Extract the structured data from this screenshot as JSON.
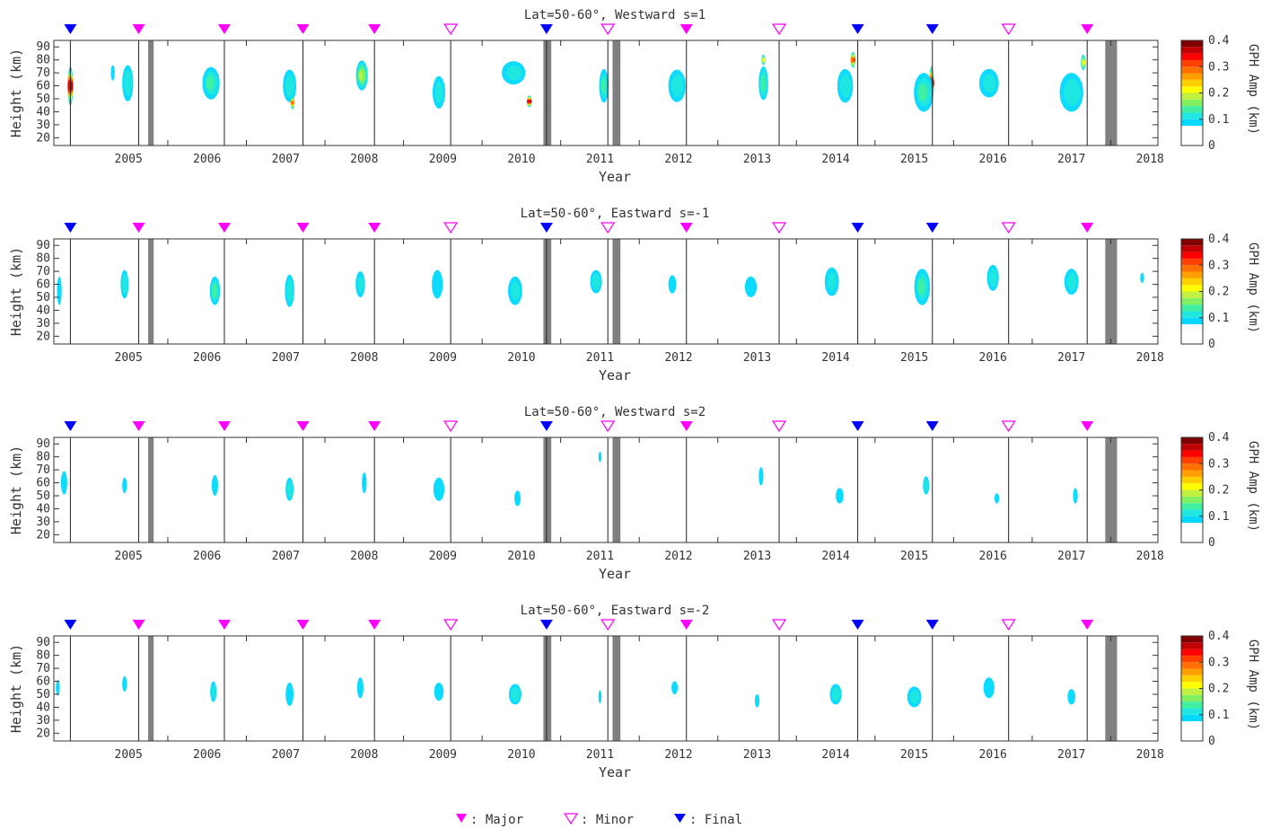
{
  "chart_data": [
    {
      "type": "heatmap",
      "title": "Lat=50-60°, Westward s=1",
      "xlabel": "Year",
      "ylabel": "Height (km)",
      "xlim": [
        2004.55,
        2018.6
      ],
      "ylim": [
        14,
        95
      ],
      "x_ticks": [
        "2005",
        "2006",
        "2007",
        "2008",
        "2009",
        "2010",
        "2011",
        "2012",
        "2013",
        "2014",
        "2015",
        "2016",
        "2017",
        "2018"
      ],
      "y_ticks": [
        "20",
        "30",
        "40",
        "50",
        "60",
        "70",
        "80",
        "90"
      ],
      "colorbar": {
        "label": "GPH Amp (km)",
        "min": 0,
        "max": 0.4,
        "ticks": [
          "0",
          "0.1",
          "0.2",
          "0.3",
          "0.4"
        ]
      },
      "blobs": [
        {
          "x": 2004.76,
          "y": 60,
          "w": 0.07,
          "h": 30,
          "v": 0.38
        },
        {
          "x": 2005.49,
          "y": 62,
          "w": 0.14,
          "h": 28,
          "v": 0.14
        },
        {
          "x": 2005.3,
          "y": 70,
          "w": 0.05,
          "h": 12,
          "v": 0.11
        },
        {
          "x": 2006.55,
          "y": 62,
          "w": 0.22,
          "h": 25,
          "v": 0.15
        },
        {
          "x": 2007.55,
          "y": 60,
          "w": 0.17,
          "h": 25,
          "v": 0.14
        },
        {
          "x": 2007.59,
          "y": 47,
          "w": 0.05,
          "h": 10,
          "v": 0.3
        },
        {
          "x": 2008.47,
          "y": 68,
          "w": 0.15,
          "h": 23,
          "v": 0.2
        },
        {
          "x": 2009.45,
          "y": 55,
          "w": 0.16,
          "h": 25,
          "v": 0.13
        },
        {
          "x": 2010.6,
          "y": 48,
          "w": 0.06,
          "h": 9,
          "v": 0.38
        },
        {
          "x": 2010.4,
          "y": 70,
          "w": 0.3,
          "h": 18,
          "v": 0.13
        },
        {
          "x": 2011.55,
          "y": 60,
          "w": 0.12,
          "h": 26,
          "v": 0.15
        },
        {
          "x": 2012.48,
          "y": 60,
          "w": 0.22,
          "h": 25,
          "v": 0.14
        },
        {
          "x": 2013.58,
          "y": 62,
          "w": 0.12,
          "h": 26,
          "v": 0.16
        },
        {
          "x": 2013.58,
          "y": 80,
          "w": 0.05,
          "h": 8,
          "v": 0.24
        },
        {
          "x": 2014.72,
          "y": 80,
          "w": 0.06,
          "h": 12,
          "v": 0.34
        },
        {
          "x": 2014.62,
          "y": 60,
          "w": 0.2,
          "h": 26,
          "v": 0.14
        },
        {
          "x": 2015.72,
          "y": 62,
          "w": 0.06,
          "h": 26,
          "v": 0.38
        },
        {
          "x": 2015.62,
          "y": 55,
          "w": 0.25,
          "h": 30,
          "v": 0.15
        },
        {
          "x": 2016.45,
          "y": 62,
          "w": 0.25,
          "h": 22,
          "v": 0.13
        },
        {
          "x": 2017.65,
          "y": 78,
          "w": 0.06,
          "h": 12,
          "v": 0.24
        },
        {
          "x": 2017.5,
          "y": 55,
          "w": 0.3,
          "h": 30,
          "v": 0.14
        }
      ]
    },
    {
      "type": "heatmap",
      "title": "Lat=50-60°, Eastward s=-1",
      "xlabel": "Year",
      "ylabel": "Height (km)",
      "xlim": [
        2004.55,
        2018.6
      ],
      "ylim": [
        14,
        95
      ],
      "x_ticks": [
        "2005",
        "2006",
        "2007",
        "2008",
        "2009",
        "2010",
        "2011",
        "2012",
        "2013",
        "2014",
        "2015",
        "2016",
        "2017",
        "2018"
      ],
      "y_ticks": [
        "20",
        "30",
        "40",
        "50",
        "60",
        "70",
        "80",
        "90"
      ],
      "colorbar": {
        "label": "GPH Amp (km)",
        "min": 0,
        "max": 0.4,
        "ticks": [
          "0",
          "0.1",
          "0.2",
          "0.3",
          "0.4"
        ]
      },
      "blobs": [
        {
          "x": 2004.62,
          "y": 55,
          "w": 0.06,
          "h": 22,
          "v": 0.11
        },
        {
          "x": 2005.45,
          "y": 60,
          "w": 0.1,
          "h": 22,
          "v": 0.14
        },
        {
          "x": 2006.6,
          "y": 55,
          "w": 0.13,
          "h": 22,
          "v": 0.16
        },
        {
          "x": 2007.55,
          "y": 55,
          "w": 0.12,
          "h": 25,
          "v": 0.14
        },
        {
          "x": 2008.45,
          "y": 60,
          "w": 0.12,
          "h": 20,
          "v": 0.13
        },
        {
          "x": 2009.43,
          "y": 60,
          "w": 0.14,
          "h": 22,
          "v": 0.12
        },
        {
          "x": 2010.42,
          "y": 55,
          "w": 0.18,
          "h": 22,
          "v": 0.13
        },
        {
          "x": 2011.45,
          "y": 62,
          "w": 0.15,
          "h": 18,
          "v": 0.14
        },
        {
          "x": 2012.42,
          "y": 60,
          "w": 0.1,
          "h": 14,
          "v": 0.11
        },
        {
          "x": 2013.42,
          "y": 58,
          "w": 0.15,
          "h": 16,
          "v": 0.12
        },
        {
          "x": 2014.45,
          "y": 62,
          "w": 0.18,
          "h": 22,
          "v": 0.13
        },
        {
          "x": 2015.6,
          "y": 58,
          "w": 0.2,
          "h": 28,
          "v": 0.15
        },
        {
          "x": 2016.5,
          "y": 65,
          "w": 0.15,
          "h": 20,
          "v": 0.14
        },
        {
          "x": 2017.5,
          "y": 62,
          "w": 0.18,
          "h": 20,
          "v": 0.14
        },
        {
          "x": 2018.4,
          "y": 65,
          "w": 0.05,
          "h": 8,
          "v": 0.11
        }
      ]
    },
    {
      "type": "heatmap",
      "title": "Lat=50-60°, Westward s=2",
      "xlabel": "Year",
      "ylabel": "Height (km)",
      "xlim": [
        2004.55,
        2018.6
      ],
      "ylim": [
        14,
        95
      ],
      "x_ticks": [
        "2005",
        "2006",
        "2007",
        "2008",
        "2009",
        "2010",
        "2011",
        "2012",
        "2013",
        "2014",
        "2015",
        "2016",
        "2017",
        "2018"
      ],
      "y_ticks": [
        "20",
        "30",
        "40",
        "50",
        "60",
        "70",
        "80",
        "90"
      ],
      "colorbar": {
        "label": "GPH Amp (km)",
        "min": 0,
        "max": 0.4,
        "ticks": [
          "0",
          "0.1",
          "0.2",
          "0.3",
          "0.4"
        ]
      },
      "blobs": [
        {
          "x": 2004.68,
          "y": 60,
          "w": 0.08,
          "h": 18,
          "v": 0.12
        },
        {
          "x": 2005.45,
          "y": 58,
          "w": 0.06,
          "h": 12,
          "v": 0.11
        },
        {
          "x": 2006.6,
          "y": 58,
          "w": 0.08,
          "h": 16,
          "v": 0.12
        },
        {
          "x": 2007.55,
          "y": 55,
          "w": 0.1,
          "h": 18,
          "v": 0.14
        },
        {
          "x": 2008.5,
          "y": 60,
          "w": 0.06,
          "h": 16,
          "v": 0.12
        },
        {
          "x": 2009.45,
          "y": 55,
          "w": 0.14,
          "h": 18,
          "v": 0.12
        },
        {
          "x": 2010.45,
          "y": 48,
          "w": 0.08,
          "h": 12,
          "v": 0.11
        },
        {
          "x": 2011.5,
          "y": 80,
          "w": 0.04,
          "h": 8,
          "v": 0.11
        },
        {
          "x": 2013.55,
          "y": 65,
          "w": 0.06,
          "h": 14,
          "v": 0.12
        },
        {
          "x": 2014.55,
          "y": 50,
          "w": 0.1,
          "h": 12,
          "v": 0.11
        },
        {
          "x": 2015.65,
          "y": 58,
          "w": 0.08,
          "h": 14,
          "v": 0.14
        },
        {
          "x": 2016.55,
          "y": 48,
          "w": 0.06,
          "h": 8,
          "v": 0.1
        },
        {
          "x": 2017.55,
          "y": 50,
          "w": 0.06,
          "h": 12,
          "v": 0.11
        }
      ]
    },
    {
      "type": "heatmap",
      "title": "Lat=50-60°, Eastward s=-2",
      "xlabel": "Year",
      "ylabel": "Height (km)",
      "xlim": [
        2004.55,
        2018.6
      ],
      "ylim": [
        14,
        95
      ],
      "x_ticks": [
        "2005",
        "2006",
        "2007",
        "2008",
        "2009",
        "2010",
        "2011",
        "2012",
        "2013",
        "2014",
        "2015",
        "2016",
        "2017",
        "2018"
      ],
      "y_ticks": [
        "20",
        "30",
        "40",
        "50",
        "60",
        "70",
        "80",
        "90"
      ],
      "colorbar": {
        "label": "GPH Amp (km)",
        "min": 0,
        "max": 0.4,
        "ticks": [
          "0",
          "0.1",
          "0.2",
          "0.3",
          "0.4"
        ]
      },
      "blobs": [
        {
          "x": 2004.6,
          "y": 55,
          "w": 0.05,
          "h": 12,
          "v": 0.11
        },
        {
          "x": 2005.45,
          "y": 58,
          "w": 0.06,
          "h": 12,
          "v": 0.11
        },
        {
          "x": 2006.58,
          "y": 52,
          "w": 0.08,
          "h": 16,
          "v": 0.13
        },
        {
          "x": 2007.55,
          "y": 50,
          "w": 0.1,
          "h": 18,
          "v": 0.12
        },
        {
          "x": 2008.45,
          "y": 55,
          "w": 0.08,
          "h": 16,
          "v": 0.12
        },
        {
          "x": 2009.45,
          "y": 52,
          "w": 0.12,
          "h": 14,
          "v": 0.12
        },
        {
          "x": 2010.42,
          "y": 50,
          "w": 0.16,
          "h": 16,
          "v": 0.14
        },
        {
          "x": 2011.5,
          "y": 48,
          "w": 0.04,
          "h": 10,
          "v": 0.1
        },
        {
          "x": 2012.45,
          "y": 55,
          "w": 0.08,
          "h": 10,
          "v": 0.11
        },
        {
          "x": 2013.5,
          "y": 45,
          "w": 0.06,
          "h": 10,
          "v": 0.1
        },
        {
          "x": 2014.5,
          "y": 50,
          "w": 0.15,
          "h": 16,
          "v": 0.14
        },
        {
          "x": 2015.5,
          "y": 48,
          "w": 0.18,
          "h": 16,
          "v": 0.13
        },
        {
          "x": 2016.45,
          "y": 55,
          "w": 0.14,
          "h": 16,
          "v": 0.12
        },
        {
          "x": 2017.5,
          "y": 48,
          "w": 0.1,
          "h": 12,
          "v": 0.11
        }
      ]
    }
  ],
  "events": [
    {
      "x": 2004.76,
      "type": "Final"
    },
    {
      "x": 2005.63,
      "type": "Major"
    },
    {
      "x": 2006.72,
      "type": "Major"
    },
    {
      "x": 2007.72,
      "type": "Major"
    },
    {
      "x": 2008.63,
      "type": "Major"
    },
    {
      "x": 2009.6,
      "type": "Minor"
    },
    {
      "x": 2010.82,
      "type": "Final"
    },
    {
      "x": 2011.6,
      "type": "Minor"
    },
    {
      "x": 2012.6,
      "type": "Major"
    },
    {
      "x": 2013.78,
      "type": "Minor"
    },
    {
      "x": 2014.78,
      "type": "Final"
    },
    {
      "x": 2015.73,
      "type": "Final"
    },
    {
      "x": 2016.7,
      "type": "Minor"
    },
    {
      "x": 2017.7,
      "type": "Major"
    }
  ],
  "gaps": [
    {
      "x0": 2005.75,
      "x1": 2005.82
    },
    {
      "x0": 2010.78,
      "x1": 2010.88
    },
    {
      "x0": 2011.66,
      "x1": 2011.76
    },
    {
      "x0": 2017.93,
      "x1": 2018.08
    }
  ],
  "legend": {
    "major": ": Major",
    "minor": ": Minor",
    "final": ": Final"
  },
  "colors": {
    "major": "#ff00ff",
    "final": "#0000ff",
    "gap": "#808080",
    "scale": [
      "#ffffff",
      "#00d8ff",
      "#20e8e0",
      "#40f0a0",
      "#80f060",
      "#c0f040",
      "#ffff00",
      "#ffd000",
      "#ffa000",
      "#ff7000",
      "#ff4000",
      "#ff0000",
      "#c00000",
      "#800000"
    ]
  }
}
